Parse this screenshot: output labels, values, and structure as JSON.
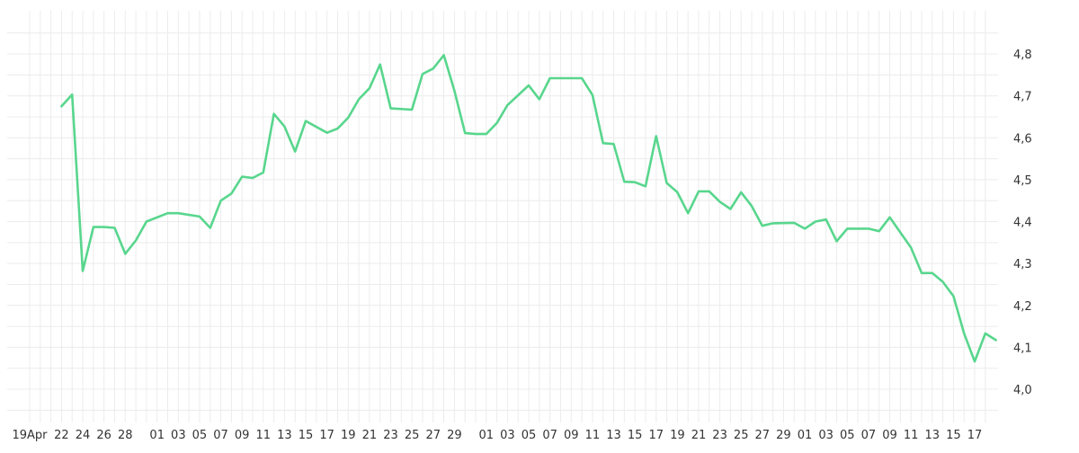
{
  "chart_data": {
    "type": "line",
    "title": "",
    "xlabel": "",
    "ylabel": "",
    "ylim": [
      3.93,
      4.89
    ],
    "yticks": [
      "4,0",
      "4,1",
      "4,2",
      "4,3",
      "4,4",
      "4,5",
      "4,6",
      "4,7",
      "4,8"
    ],
    "ytick_values": [
      4.0,
      4.1,
      4.2,
      4.3,
      4.4,
      4.5,
      4.6,
      4.7,
      4.8
    ],
    "xtick_labels": [
      "19Apr",
      "22",
      "24",
      "26",
      "28",
      "01",
      "03",
      "05",
      "07",
      "09",
      "11",
      "13",
      "15",
      "17",
      "19",
      "21",
      "23",
      "25",
      "27",
      "29",
      "01",
      "03",
      "05",
      "07",
      "09",
      "11",
      "13",
      "15",
      "17",
      "19",
      "21",
      "23",
      "25",
      "27",
      "29",
      "01",
      "03",
      "05",
      "07",
      "09",
      "11",
      "13",
      "15",
      "17"
    ],
    "xtick_dates": [
      "2023-04-19",
      "2023-04-22",
      "2023-04-24",
      "2023-04-26",
      "2023-04-28",
      "2023-05-01",
      "2023-05-03",
      "2023-05-05",
      "2023-05-07",
      "2023-05-09",
      "2023-05-11",
      "2023-05-13",
      "2023-05-15",
      "2023-05-17",
      "2023-05-19",
      "2023-05-21",
      "2023-05-23",
      "2023-05-25",
      "2023-05-27",
      "2023-05-29",
      "2023-06-01",
      "2023-06-03",
      "2023-06-05",
      "2023-06-07",
      "2023-06-09",
      "2023-06-11",
      "2023-06-13",
      "2023-06-15",
      "2023-06-17",
      "2023-06-19",
      "2023-06-21",
      "2023-06-23",
      "2023-06-25",
      "2023-06-27",
      "2023-06-29",
      "2023-07-01",
      "2023-07-03",
      "2023-07-05",
      "2023-07-07",
      "2023-07-09",
      "2023-07-11",
      "2023-07-13",
      "2023-07-15",
      "2023-07-17"
    ],
    "x_range": [
      "2023-04-19",
      "2023-07-18"
    ],
    "grid": true,
    "legend": "none",
    "series": [
      {
        "color": "#58d68d",
        "points": [
          [
            "2023-04-22",
            4.675
          ],
          [
            "2023-04-23",
            4.703
          ],
          [
            "2023-04-24",
            4.282
          ],
          [
            "2023-04-25",
            4.387
          ],
          [
            "2023-04-26",
            4.387
          ],
          [
            "2023-04-27",
            4.385
          ],
          [
            "2023-04-28",
            4.323
          ],
          [
            "2023-04-29",
            4.355
          ],
          [
            "2023-04-30",
            4.4
          ],
          [
            "2023-05-02",
            4.42
          ],
          [
            "2023-05-03",
            4.42
          ],
          [
            "2023-05-05",
            4.412
          ],
          [
            "2023-05-06",
            4.385
          ],
          [
            "2023-05-07",
            4.45
          ],
          [
            "2023-05-08",
            4.467
          ],
          [
            "2023-05-09",
            4.507
          ],
          [
            "2023-05-10",
            4.504
          ],
          [
            "2023-05-11",
            4.517
          ],
          [
            "2023-05-12",
            4.657
          ],
          [
            "2023-05-13",
            4.627
          ],
          [
            "2023-05-14",
            4.567
          ],
          [
            "2023-05-15",
            4.64
          ],
          [
            "2023-05-17",
            4.612
          ],
          [
            "2023-05-18",
            4.622
          ],
          [
            "2023-05-19",
            4.648
          ],
          [
            "2023-05-20",
            4.692
          ],
          [
            "2023-05-21",
            4.718
          ],
          [
            "2023-05-22",
            4.775
          ],
          [
            "2023-05-23",
            4.67
          ],
          [
            "2023-05-25",
            4.667
          ],
          [
            "2023-05-26",
            4.752
          ],
          [
            "2023-05-27",
            4.765
          ],
          [
            "2023-05-28",
            4.797
          ],
          [
            "2023-05-29",
            4.712
          ],
          [
            "2023-05-30",
            4.611
          ],
          [
            "2023-05-31",
            4.609
          ],
          [
            "2023-06-01",
            4.609
          ],
          [
            "2023-06-02",
            4.635
          ],
          [
            "2023-06-03",
            4.678
          ],
          [
            "2023-06-05",
            4.725
          ],
          [
            "2023-06-06",
            4.692
          ],
          [
            "2023-06-07",
            4.742
          ],
          [
            "2023-06-10",
            4.742
          ],
          [
            "2023-06-11",
            4.702
          ],
          [
            "2023-06-12",
            4.587
          ],
          [
            "2023-06-13",
            4.585
          ],
          [
            "2023-06-14",
            4.495
          ],
          [
            "2023-06-15",
            4.494
          ],
          [
            "2023-06-16",
            4.484
          ],
          [
            "2023-06-17",
            4.604
          ],
          [
            "2023-06-18",
            4.492
          ],
          [
            "2023-06-19",
            4.47
          ],
          [
            "2023-06-20",
            4.42
          ],
          [
            "2023-06-21",
            4.472
          ],
          [
            "2023-06-22",
            4.472
          ],
          [
            "2023-06-23",
            4.447
          ],
          [
            "2023-06-24",
            4.43
          ],
          [
            "2023-06-25",
            4.47
          ],
          [
            "2023-06-26",
            4.437
          ],
          [
            "2023-06-27",
            4.39
          ],
          [
            "2023-06-28",
            4.396
          ],
          [
            "2023-06-30",
            4.397
          ],
          [
            "2023-07-01",
            4.383
          ],
          [
            "2023-07-02",
            4.4
          ],
          [
            "2023-07-03",
            4.405
          ],
          [
            "2023-07-04",
            4.353
          ],
          [
            "2023-07-05",
            4.383
          ],
          [
            "2023-07-07",
            4.383
          ],
          [
            "2023-07-08",
            4.377
          ],
          [
            "2023-07-09",
            4.41
          ],
          [
            "2023-07-10",
            4.374
          ],
          [
            "2023-07-11",
            4.338
          ],
          [
            "2023-07-12",
            4.277
          ],
          [
            "2023-07-13",
            4.277
          ],
          [
            "2023-07-14",
            4.256
          ],
          [
            "2023-07-15",
            4.222
          ],
          [
            "2023-07-16",
            4.133
          ],
          [
            "2023-07-17",
            4.066
          ],
          [
            "2023-07-18",
            4.133
          ],
          [
            "2023-07-19",
            4.117
          ]
        ]
      }
    ]
  }
}
